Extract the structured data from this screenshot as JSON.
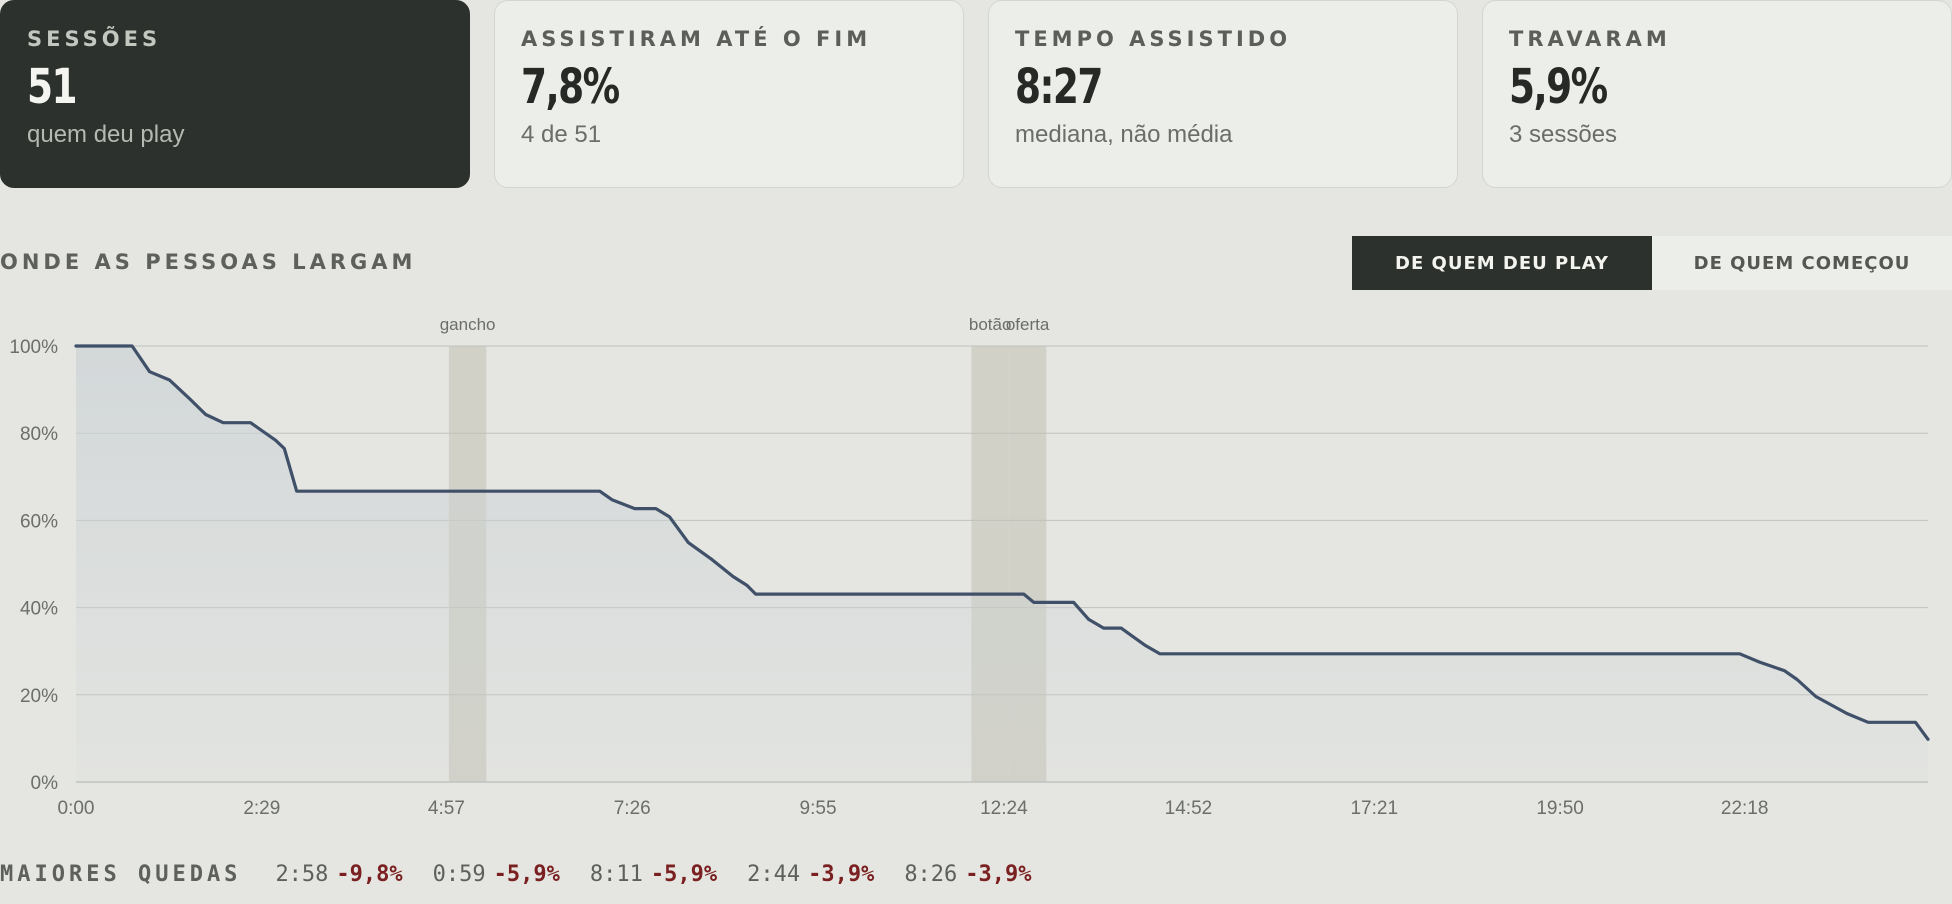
{
  "stats": [
    {
      "label": "SESSÕES",
      "value": "51",
      "sub": "quem deu play"
    },
    {
      "label": "ASSISTIRAM ATÉ O FIM",
      "value": "7,8%",
      "sub": "4 de 51"
    },
    {
      "label": "TEMPO ASSISTIDO",
      "value": "8:27",
      "sub": "mediana, não média"
    },
    {
      "label": "TRAVARAM",
      "value": "5,9%",
      "sub": "3 sessões"
    }
  ],
  "section_title": "ONDE AS PESSOAS LARGAM",
  "toggle": {
    "active": "DE QUEM DEU PLAY",
    "inactive": "DE QUEM COMEÇOU"
  },
  "colors": {
    "line": "#3f5068",
    "fill": "#cdd3d6",
    "band": "#cfccc2",
    "grid": "#bfc2bc",
    "drop": "#7a2020"
  },
  "chart_data": {
    "type": "area",
    "xlabel": "",
    "ylabel": "",
    "xlim_seconds": [
      0,
      1485
    ],
    "ylim": [
      0,
      100
    ],
    "y_ticks": [
      "100%",
      "80%",
      "60%",
      "40%",
      "20%",
      "0%"
    ],
    "y_tick_values": [
      100,
      80,
      60,
      40,
      20,
      0
    ],
    "x_ticks": [
      "0:00",
      "2:29",
      "4:57",
      "7:26",
      "9:55",
      "12:24",
      "14:52",
      "17:21",
      "19:50",
      "22:18"
    ],
    "x_tick_seconds": [
      0,
      149,
      297,
      446,
      595,
      744,
      892,
      1041,
      1190,
      1338
    ],
    "bands": [
      {
        "label": "gancho",
        "start_seconds": 299,
        "end_seconds": 329
      },
      {
        "label": "botão",
        "start_seconds": 718,
        "end_seconds": 748
      },
      {
        "label": "oferta",
        "start_seconds": 748,
        "end_seconds": 778
      }
    ],
    "series": [
      {
        "x_seconds": [
          0,
          45,
          59,
          75,
          90,
          104,
          118,
          129,
          140,
          150,
          160,
          167,
          177,
          420,
          430,
          448,
          465,
          476,
          491,
          510,
          527,
          538,
          545,
          760,
          768,
          800,
          812,
          824,
          838,
          857,
          869,
          883,
          1334,
          1350,
          1370,
          1380,
          1395,
          1420,
          1437,
          1475,
          1485
        ],
        "values": [
          100,
          100,
          94.1,
          92.2,
          88.2,
          84.3,
          82.4,
          82.4,
          82.4,
          80.4,
          78.4,
          76.5,
          66.7,
          66.7,
          64.7,
          62.7,
          62.7,
          60.8,
          54.9,
          51.0,
          47.1,
          45.1,
          43.1,
          43.1,
          41.2,
          41.2,
          37.3,
          35.3,
          35.3,
          31.4,
          29.4,
          29.4,
          29.4,
          27.5,
          25.5,
          23.5,
          19.6,
          15.7,
          13.7,
          13.7,
          9.8
        ]
      }
    ]
  },
  "drops": {
    "label": "MAIORES QUEDAS",
    "items": [
      {
        "time": "2:58",
        "value": "-9,8%"
      },
      {
        "time": "0:59",
        "value": "-5,9%"
      },
      {
        "time": "8:11",
        "value": "-5,9%"
      },
      {
        "time": "2:44",
        "value": "-3,9%"
      },
      {
        "time": "8:26",
        "value": "-3,9%"
      }
    ]
  }
}
